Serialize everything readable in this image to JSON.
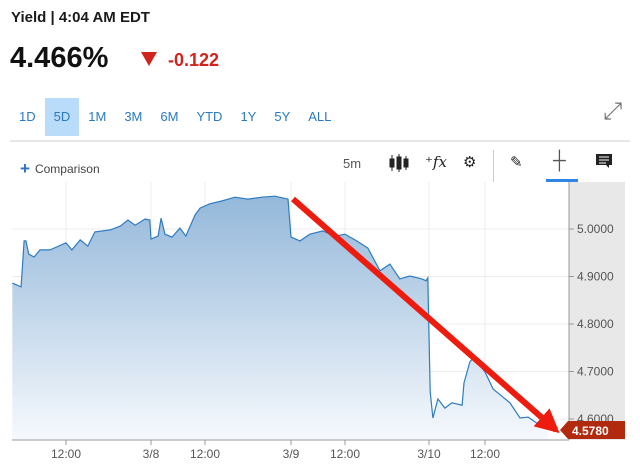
{
  "header": {
    "title": "Yield | 4:04 AM EDT",
    "price": "4.466%",
    "change": "-0.122",
    "change_direction": "down",
    "change_color": "#d0241c"
  },
  "ranges": {
    "items": [
      "1D",
      "5D",
      "1M",
      "3M",
      "6M",
      "YTD",
      "1Y",
      "5Y",
      "ALL"
    ],
    "active": "5D"
  },
  "toolbar": {
    "comparison_label": "Comparison",
    "interval": "5m",
    "icons": [
      "candlestick-icon",
      "function-icon",
      "gear-icon",
      "pencil-icon",
      "crosshair-icon",
      "comment-icon"
    ]
  },
  "chart_data": {
    "type": "area",
    "x_ticks": [
      "12:00",
      "3/8",
      "12:00",
      "3/9",
      "12:00",
      "3/10",
      "12:00"
    ],
    "y_ticks": [
      "5.0000",
      "4.9000",
      "4.8000",
      "4.7000",
      "4.6000"
    ],
    "ylim": [
      4.55,
      5.1
    ],
    "last_value_label": "4.5780",
    "line_color": "#2e7cc1",
    "grid": true,
    "annotation": "red arrow pointing down from 3/9 high to last value",
    "series": [
      [
        "3/7 04:25",
        4.886
      ],
      [
        "3/7 05:40",
        4.878
      ],
      [
        "3/7 06:05",
        4.975
      ],
      [
        "3/7 06:20",
        4.975
      ],
      [
        "3/7 06:45",
        4.947
      ],
      [
        "3/7 07:30",
        4.941
      ],
      [
        "3/7 08:20",
        4.956
      ],
      [
        "3/7 09:45",
        4.956
      ],
      [
        "3/7 12:00",
        4.971
      ],
      [
        "3/7 12:50",
        4.956
      ],
      [
        "3/7 14:00",
        4.977
      ],
      [
        "3/7 15:05",
        4.964
      ],
      [
        "3/7 16:05",
        4.994
      ],
      [
        "3/7 18:15",
        4.998
      ],
      [
        "3/7 19:40",
        5.006
      ],
      [
        "3/7 20:45",
        5.019
      ],
      [
        "3/7 21:45",
        5.008
      ],
      [
        "3/7 23:10",
        5.021
      ],
      [
        "3/7 23:50",
        5.019
      ],
      [
        "3/8 00:00",
        4.979
      ],
      [
        "3/8 01:35",
        4.985
      ],
      [
        "3/8 02:15",
        5.023
      ],
      [
        "3/8 03:05",
        4.989
      ],
      [
        "3/8 04:40",
        4.983
      ],
      [
        "3/8 06:25",
        5.002
      ],
      [
        "3/8 07:45",
        4.985
      ],
      [
        "3/8 09:45",
        5.029
      ],
      [
        "3/8 10:55",
        5.044
      ],
      [
        "3/8 12:40",
        5.053
      ],
      [
        "3/8 14:20",
        5.059
      ],
      [
        "3/8 16:10",
        5.067
      ],
      [
        "3/8 18:00",
        5.063
      ],
      [
        "3/8 19:55",
        5.067
      ],
      [
        "3/8 21:45",
        5.069
      ],
      [
        "3/8 23:35",
        5.063
      ],
      [
        "3/9 00:00",
        4.983
      ],
      [
        "3/9 02:00",
        4.975
      ],
      [
        "3/9 04:10",
        4.989
      ],
      [
        "3/9 07:05",
        4.996
      ],
      [
        "3/9 09:45",
        4.985
      ],
      [
        "3/9 12:00",
        4.989
      ],
      [
        "3/9 13:40",
        4.975
      ],
      [
        "3/9 15:15",
        4.96
      ],
      [
        "3/9 17:00",
        4.912
      ],
      [
        "3/9 18:25",
        4.926
      ],
      [
        "3/9 19:50",
        4.895
      ],
      [
        "3/9 21:15",
        4.901
      ],
      [
        "3/9 23:00",
        4.895
      ],
      [
        "3/9 23:35",
        4.891
      ],
      [
        "3/9 23:50",
        4.897
      ],
      [
        "3/10 00:15",
        4.657
      ],
      [
        "3/10 00:50",
        4.602
      ],
      [
        "3/10 01:55",
        4.642
      ],
      [
        "3/10 03:25",
        4.623
      ],
      [
        "3/10 04:55",
        4.634
      ],
      [
        "3/10 07:05",
        4.629
      ],
      [
        "3/10 07:30",
        4.676
      ],
      [
        "3/10 08:45",
        4.72
      ],
      [
        "3/10 09:25",
        4.728
      ],
      [
        "3/10 10:30",
        4.718
      ],
      [
        "3/10 12:00",
        4.699
      ],
      [
        "3/10 13:45",
        4.663
      ],
      [
        "3/10 15:15",
        4.651
      ],
      [
        "3/10 17:20",
        4.634
      ],
      [
        "3/10 19:30",
        4.602
      ],
      [
        "3/10 21:15",
        4.604
      ],
      [
        "3/10 23:45",
        4.587
      ],
      [
        "3/11 01:30",
        4.578
      ]
    ]
  }
}
